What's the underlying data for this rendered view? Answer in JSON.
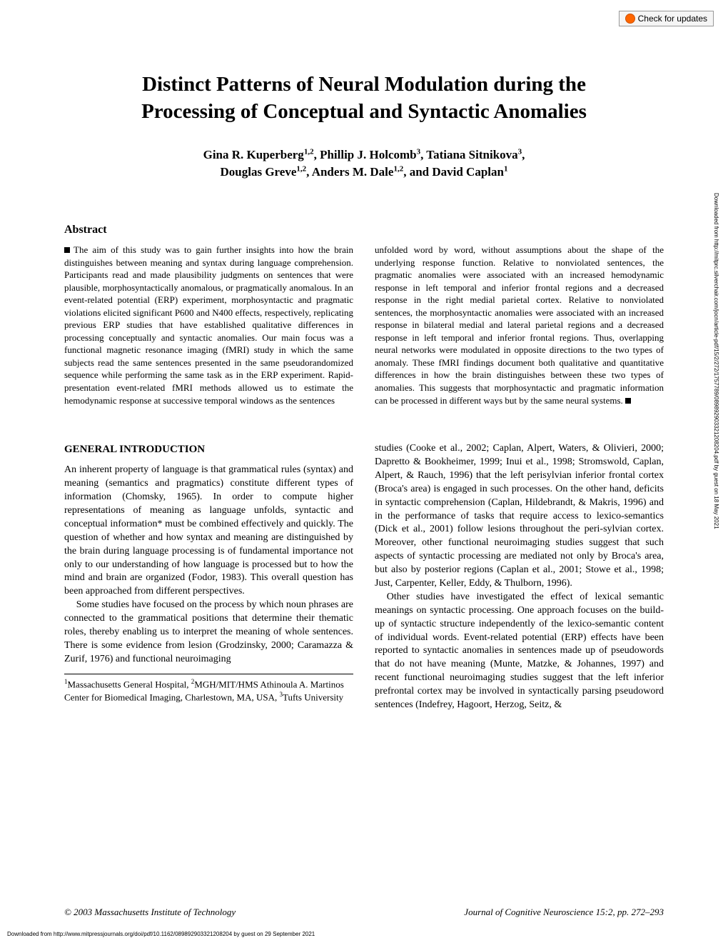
{
  "check_updates": {
    "label": "Check for updates"
  },
  "title": {
    "line1": "Distinct Patterns of Neural Modulation during the",
    "line2": "Processing of Conceptual and Syntactic Anomalies"
  },
  "authors_line1": "Gina R. Kuperberg",
  "authors_sup1": "1,2",
  "authors_mid1": ", Phillip J. Holcomb",
  "authors_sup2": "3",
  "authors_mid2": ", Tatiana Sitnikova",
  "authors_sup3": "3",
  "authors_mid3": ",",
  "authors_line2_a": "Douglas Greve",
  "authors_sup4": "1,2",
  "authors_line2_b": ", Anders M. Dale",
  "authors_sup5": "1,2",
  "authors_line2_c": ", and David Caplan",
  "authors_sup6": "1",
  "abstract": {
    "header": "Abstract",
    "col1": "The aim of this study was to gain further insights into how the brain distinguishes between meaning and syntax during language comprehension. Participants read and made plausibility judgments on sentences that were plausible, morphosyntactically anomalous, or pragmatically anomalous. In an event-related potential (ERP) experiment, morphosyntactic and pragmatic violations elicited significant P600 and N400 effects, respectively, replicating previous ERP studies that have established qualitative differences in processing conceptually and syntactic anomalies. Our main focus was a functional magnetic resonance imaging (fMRI) study in which the same subjects read the same sentences presented in the same pseudorandomized sequence while performing the same task as in the ERP experiment. Rapid-presentation event-related fMRI methods allowed us to estimate the hemodynamic response at successive temporal windows as the sentences",
    "col2": "unfolded word by word, without assumptions about the shape of the underlying response function. Relative to nonviolated sentences, the pragmatic anomalies were associated with an increased hemodynamic response in left temporal and inferior frontal regions and a decreased response in the right medial parietal cortex. Relative to nonviolated sentences, the morphosyntactic anomalies were associated with an increased response in bilateral medial and lateral parietal regions and a decreased response in left temporal and inferior frontal regions. Thus, overlapping neural networks were modulated in opposite directions to the two types of anomaly. These fMRI findings document both qualitative and quantitative differences in how the brain distinguishes between these two types of anomalies. This suggests that morphosyntactic and pragmatic information can be processed in different ways but by the same neural systems."
  },
  "intro": {
    "header": "GENERAL INTRODUCTION",
    "col1_p1": "An inherent property of language is that grammatical rules (syntax) and meaning (semantics and pragmatics) constitute different types of information (Chomsky, 1965). In order to compute higher representations of meaning as language unfolds, syntactic and conceptual information* must be combined effectively and quickly. The question of whether and how syntax and meaning are distinguished by the brain during language processing is of fundamental importance not only to our understanding of how language is processed but to how the mind and brain are organized (Fodor, 1983). This overall question has been approached from different perspectives.",
    "col1_p2": "Some studies have focused on the process by which noun phrases are connected to the grammatical positions that determine their thematic roles, thereby enabling us to interpret the meaning of whole sentences. There is some evidence from lesion (Grodzinsky, 2000; Caramazza & Zurif, 1976) and functional neuroimaging",
    "col2_p1": "studies (Cooke et al., 2002; Caplan, Alpert, Waters, & Olivieri, 2000; Dapretto & Bookheimer, 1999; Inui et al., 1998; Stromswold, Caplan, Alpert, & Rauch, 1996) that the left perisylvian inferior frontal cortex (Broca's area) is engaged in such processes. On the other hand, deficits in syntactic comprehension (Caplan, Hildebrandt, & Makris, 1996) and in the performance of tasks that require access to lexico-semantics (Dick et al., 2001) follow lesions throughout the peri-sylvian cortex. Moreover, other functional neuroimaging studies suggest that such aspects of syntactic processing are mediated not only by Broca's area, but also by posterior regions (Caplan et al., 2001; Stowe et al., 1998; Just, Carpenter, Keller, Eddy, & Thulborn, 1996).",
    "col2_p2": "Other studies have investigated the effect of lexical semantic meanings on syntactic processing. One approach focuses on the build-up of syntactic structure independently of the lexico-semantic content of individual words. Event-related potential (ERP) effects have been reported to syntactic anomalies in sentences made up of pseudowords that do not have meaning (Munte, Matzke, & Johannes, 1997) and recent functional neuroimaging studies suggest that the left inferior prefrontal cortex may be involved in syntactically parsing pseudoword sentences (Indefrey, Hagoort, Herzog, Seitz, &"
  },
  "affiliations": {
    "a1": "1",
    "t1": "Massachusetts General Hospital, ",
    "a2": "2",
    "t2": "MGH/MIT/HMS Athinoula A. Martinos Center for Biomedical Imaging, Charlestown, MA, USA, ",
    "a3": "3",
    "t3": "Tufts University"
  },
  "footer": {
    "left": "© 2003 Massachusetts Institute of Technology",
    "right": "Journal of Cognitive Neuroscience 15:2, pp. 272–293"
  },
  "download_note": "Downloaded from http://www.mitpressjournals.org/doi/pdf/10.1162/089892903321208204 by guest on 29 September 2021",
  "side_note": "Downloaded from http://mitprc.silverchair.com/jocn/article-pdf/15/2/272/1757789/089892903321208204.pdf by guest on 18 May 2021"
}
